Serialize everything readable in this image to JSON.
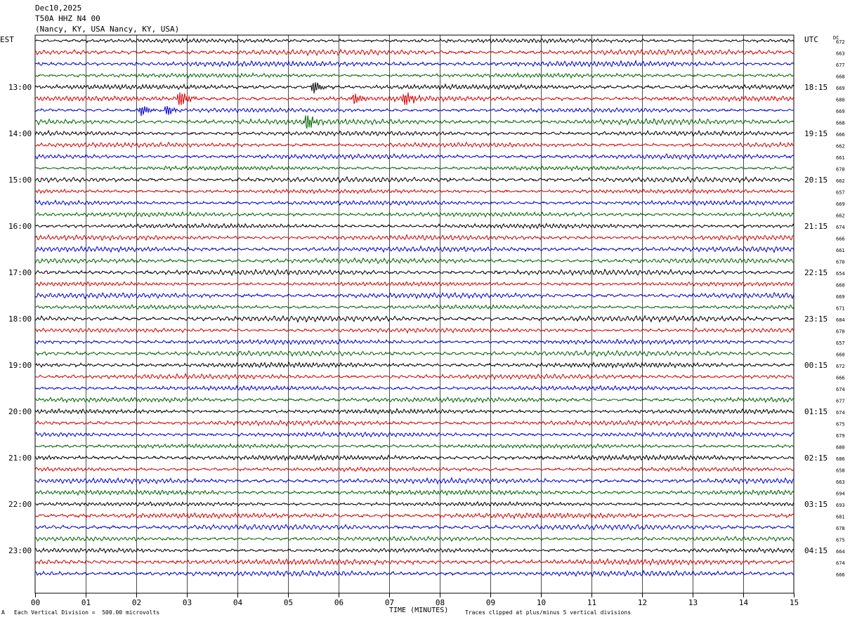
{
  "header": {
    "date": "Dec10,2025",
    "channel": "T50A HHZ N4 00",
    "location": "(Nancy, KY, USA Nancy, KY, USA)"
  },
  "left_label": "EST",
  "right_label": "UTC",
  "dc_label": "DC",
  "footer": {
    "scale": "Each Vertical Division =  500.00 microvolts",
    "clip": "Traces clipped at plus/minus 5 vertical divisions",
    "corner_mark": "A"
  },
  "colors": {
    "cycle": [
      "#000000",
      "#d40000",
      "#0000cc",
      "#006400"
    ],
    "grid": "#000000"
  },
  "chart_data": {
    "type": "line",
    "xlabel": "TIME (MINUTES)",
    "xlim": [
      0,
      15
    ],
    "x_ticks": [
      "00",
      "01",
      "02",
      "03",
      "04",
      "05",
      "06",
      "07",
      "08",
      "09",
      "10",
      "11",
      "12",
      "13",
      "14",
      "15"
    ],
    "traces_per_hour": 4,
    "minutes_per_trace": 15,
    "hour_labels_est": [
      "13:00",
      "14:00",
      "15:00",
      "16:00",
      "17:00",
      "18:00",
      "19:00",
      "20:00",
      "21:00",
      "22:00",
      "23:00"
    ],
    "hour_labels_utc": [
      "18:15",
      "19:15",
      "20:15",
      "21:15",
      "22:15",
      "23:15",
      "00:15",
      "01:15",
      "02:15",
      "03:15",
      "04:15"
    ],
    "dc_offsets": [
      672,
      663,
      677,
      668,
      669,
      680,
      669,
      668,
      666,
      662,
      661,
      670,
      662,
      657,
      669,
      662,
      674,
      666,
      661,
      670,
      654,
      660,
      669,
      671,
      684,
      670,
      657,
      660,
      672,
      666,
      674,
      677,
      674,
      675,
      679,
      680,
      686,
      658,
      663,
      694,
      693,
      681,
      678,
      675,
      664,
      674,
      666
    ],
    "events": [
      {
        "trace": 4,
        "minute": 5.5,
        "amplitude": 1.6
      },
      {
        "trace": 5,
        "minute": 2.85,
        "amplitude": 2.2
      },
      {
        "trace": 5,
        "minute": 6.3,
        "amplitude": 1.4
      },
      {
        "trace": 5,
        "minute": 7.3,
        "amplitude": 2.0
      },
      {
        "trace": 6,
        "minute": 2.1,
        "amplitude": 1.4
      },
      {
        "trace": 6,
        "minute": 2.6,
        "amplitude": 1.3
      },
      {
        "trace": 7,
        "minute": 5.35,
        "amplitude": 2.2
      }
    ]
  }
}
